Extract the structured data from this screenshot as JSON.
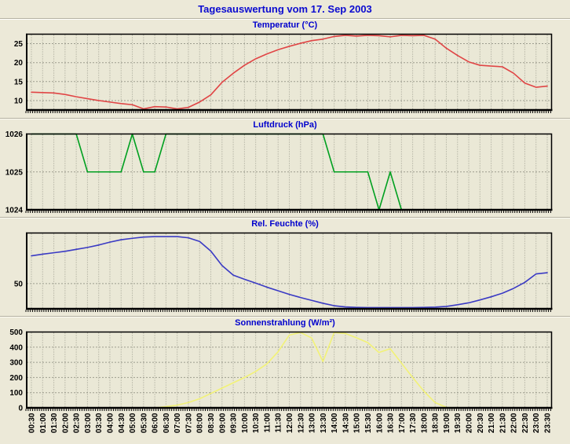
{
  "window": {
    "title": "Tagesauswertung vom 17. Sep 2003"
  },
  "colors": {
    "page_bg": "#ece9d8",
    "plot_bg": "#eae8d6",
    "grid": "#9c9c8e",
    "frame": "#000000",
    "main_title_text": "#0b0bd0",
    "chart_title_text": "#0000cd",
    "tick_label_text": "#000000"
  },
  "time_labels": [
    "00:30",
    "01:00",
    "01:30",
    "02:00",
    "02:30",
    "03:00",
    "03:30",
    "04:00",
    "04:30",
    "05:00",
    "05:30",
    "06:00",
    "06:30",
    "07:00",
    "07:30",
    "08:00",
    "08:30",
    "09:00",
    "09:30",
    "10:00",
    "10:30",
    "11:00",
    "11:30",
    "12:00",
    "12:30",
    "13:00",
    "13:30",
    "14:00",
    "14:30",
    "15:00",
    "15:30",
    "16:00",
    "16:30",
    "17:00",
    "17:30",
    "18:00",
    "18:30",
    "19:00",
    "19:30",
    "20:00",
    "20:30",
    "21:00",
    "21:30",
    "22:00",
    "22:30",
    "23:00",
    "23:30"
  ],
  "chart_data": [
    {
      "type": "line",
      "title": "Temperatur (°C)",
      "color": "#e04545",
      "ylim": [
        7.5,
        27.5
      ],
      "yticks": [
        10,
        15,
        20,
        25
      ],
      "grid": true,
      "legend_position": "none",
      "show_x_labels": false,
      "values": [
        12.2,
        12.1,
        12.0,
        11.6,
        11.0,
        10.5,
        10.0,
        9.6,
        9.2,
        8.9,
        7.8,
        8.4,
        8.3,
        7.8,
        8.2,
        9.6,
        11.5,
        14.8,
        17.2,
        19.3,
        21.0,
        22.3,
        23.4,
        24.3,
        25.1,
        25.8,
        26.2,
        26.9,
        27.2,
        27.0,
        27.2,
        27.1,
        26.8,
        27.2,
        27.1,
        27.2,
        26.2,
        23.8,
        21.9,
        20.2,
        19.3,
        19.1,
        18.9,
        17.2,
        14.6,
        13.5,
        13.8
      ]
    },
    {
      "type": "line",
      "title": "Luftdruck (hPa)",
      "color": "#00a020",
      "ylim": [
        1024,
        1026
      ],
      "yticks": [
        1024,
        1025,
        1026
      ],
      "grid": true,
      "legend_position": "none",
      "show_x_labels": false,
      "values": [
        1026,
        1026,
        1026,
        1026,
        1026,
        1025,
        1025,
        1025,
        1025,
        1026,
        1025,
        1025,
        1026,
        1026,
        1026,
        1026,
        1026,
        1026,
        1026,
        1026,
        1026,
        1026,
        1026,
        1026,
        1026,
        1026,
        1026,
        1025,
        1025,
        1025,
        1025,
        1024,
        1025,
        1024,
        1024,
        1024,
        1024,
        1024,
        1024,
        1024,
        1024,
        1024,
        1024,
        1024,
        1024,
        1024,
        1024
      ]
    },
    {
      "type": "line",
      "title": "Rel. Feuchte (%)",
      "color": "#3a3ac4",
      "ylim": [
        39.5,
        71
      ],
      "yticks": [
        50
      ],
      "grid": true,
      "legend_position": "none",
      "show_x_labels": false,
      "values": [
        61.5,
        62.2,
        62.8,
        63.4,
        64.2,
        65.0,
        66.0,
        67.2,
        68.2,
        68.8,
        69.3,
        69.5,
        69.5,
        69.5,
        69.0,
        67.5,
        63.5,
        57.5,
        53.5,
        51.8,
        50.2,
        48.5,
        47.0,
        45.5,
        44.2,
        43.0,
        41.8,
        40.8,
        40.3,
        40.1,
        40.0,
        40.0,
        40.0,
        40.0,
        40.0,
        40.1,
        40.2,
        40.5,
        41.2,
        42.0,
        43.2,
        44.5,
        46.0,
        48.0,
        50.5,
        54.0,
        54.5
      ]
    },
    {
      "type": "line",
      "title": "Sonnenstrahlung (W/m²)",
      "color": "#f2f276",
      "ylim": [
        0,
        500
      ],
      "yticks": [
        0,
        100,
        200,
        300,
        400,
        500
      ],
      "grid": true,
      "legend_position": "none",
      "show_x_labels": true,
      "values": [
        0,
        0,
        0,
        0,
        0,
        0,
        0,
        0,
        0,
        0,
        0,
        0,
        8,
        18,
        35,
        60,
        95,
        130,
        165,
        200,
        240,
        290,
        370,
        480,
        497,
        460,
        305,
        497,
        490,
        462,
        430,
        365,
        390,
        295,
        200,
        110,
        35,
        3,
        0,
        0,
        0,
        0,
        0,
        0,
        0,
        0,
        0
      ]
    }
  ]
}
